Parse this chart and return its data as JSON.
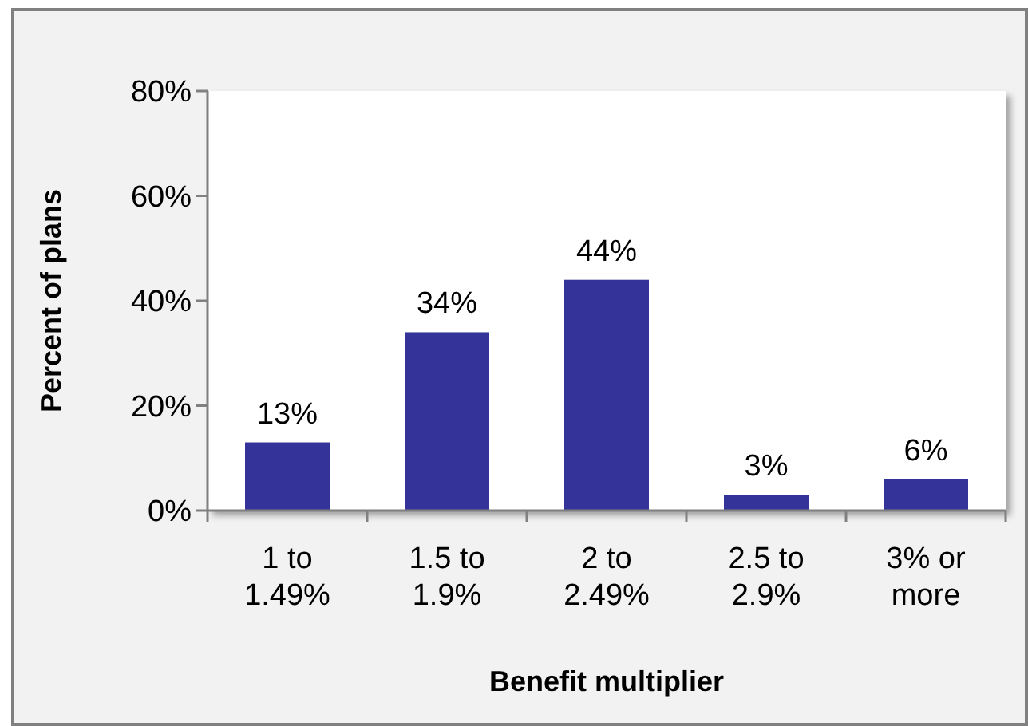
{
  "chart_data": {
    "type": "bar",
    "xlabel": "Benefit multiplier",
    "ylabel": "Percent of plans",
    "categories": [
      "1 to 1.49%",
      "1.5 to 1.9%",
      "2 to 2.49%",
      "2.5 to 2.9%",
      "3% or more"
    ],
    "values": [
      13,
      34,
      44,
      3,
      6
    ],
    "value_labels": [
      "13%",
      "34%",
      "44%",
      "3%",
      "6%"
    ],
    "color": "#333399",
    "ylim": [
      0,
      80
    ],
    "yticks": [
      {
        "value": 0,
        "label": "0%"
      },
      {
        "value": 20,
        "label": "20%"
      },
      {
        "value": 40,
        "label": "40%"
      },
      {
        "value": 60,
        "label": "60%"
      },
      {
        "value": 80,
        "label": "80%"
      }
    ],
    "grid": false
  }
}
